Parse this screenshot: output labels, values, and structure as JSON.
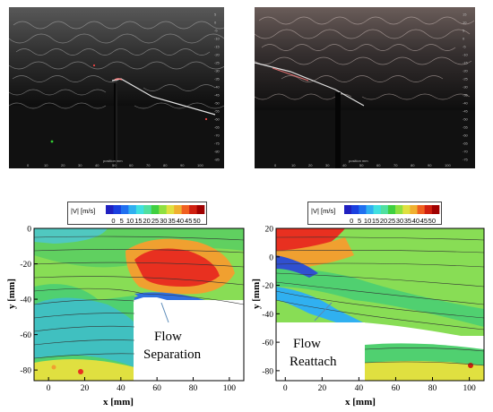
{
  "top_left_photo": {
    "axis_title": "position mm",
    "x_ticks": [
      "0",
      "10",
      "20",
      "30",
      "40",
      "50",
      "60",
      "70",
      "80",
      "90",
      "100"
    ],
    "y_ticks": [
      "5",
      "0",
      "-5",
      "-10",
      "-15",
      "-20",
      "-25",
      "-30",
      "-35",
      "-40",
      "-45",
      "-50",
      "-55",
      "-60",
      "-65",
      "-70",
      "-75",
      "-80",
      "-85"
    ]
  },
  "top_right_photo": {
    "axis_title": "position mm",
    "x_ticks": [
      "0",
      "10",
      "20",
      "30",
      "40",
      "50",
      "60",
      "70",
      "80",
      "90",
      "100"
    ],
    "y_ticks": [
      "15",
      "10",
      "5",
      "0",
      "-5",
      "-10",
      "-15",
      "-20",
      "-25",
      "-30",
      "-35",
      "-40",
      "-45",
      "-50",
      "-55",
      "-60",
      "-65",
      "-70",
      "-75"
    ]
  },
  "colorbar": {
    "label": "|V| [m/s]",
    "ticks": [
      "0",
      "5",
      "10",
      "15",
      "20",
      "25",
      "30",
      "35",
      "40",
      "45",
      "50"
    ],
    "colors": [
      "#2020c0",
      "#1a40e0",
      "#2070f0",
      "#30b0f0",
      "#40e0e0",
      "#50e0a0",
      "#40d040",
      "#90e040",
      "#e0e040",
      "#f0b030",
      "#f06020",
      "#d02010",
      "#a00000"
    ]
  },
  "plot_left": {
    "x_ticks": [
      "0",
      "20",
      "40",
      "60",
      "80",
      "100"
    ],
    "y_ticks": [
      "0",
      "-20",
      "-40",
      "-60",
      "-80"
    ],
    "xlabel": "x [mm]",
    "ylabel": "y [mm]",
    "annotation_line1": "Flow",
    "annotation_line2": "Separation"
  },
  "plot_right": {
    "x_ticks": [
      "0",
      "20",
      "40",
      "60",
      "80",
      "100"
    ],
    "y_ticks": [
      "20",
      "0",
      "-20",
      "-40",
      "-60",
      "-80"
    ],
    "xlabel": "x [mm]",
    "ylabel": "y [mm]",
    "annotation_line1": "Flow",
    "annotation_line2": "Reattach"
  }
}
